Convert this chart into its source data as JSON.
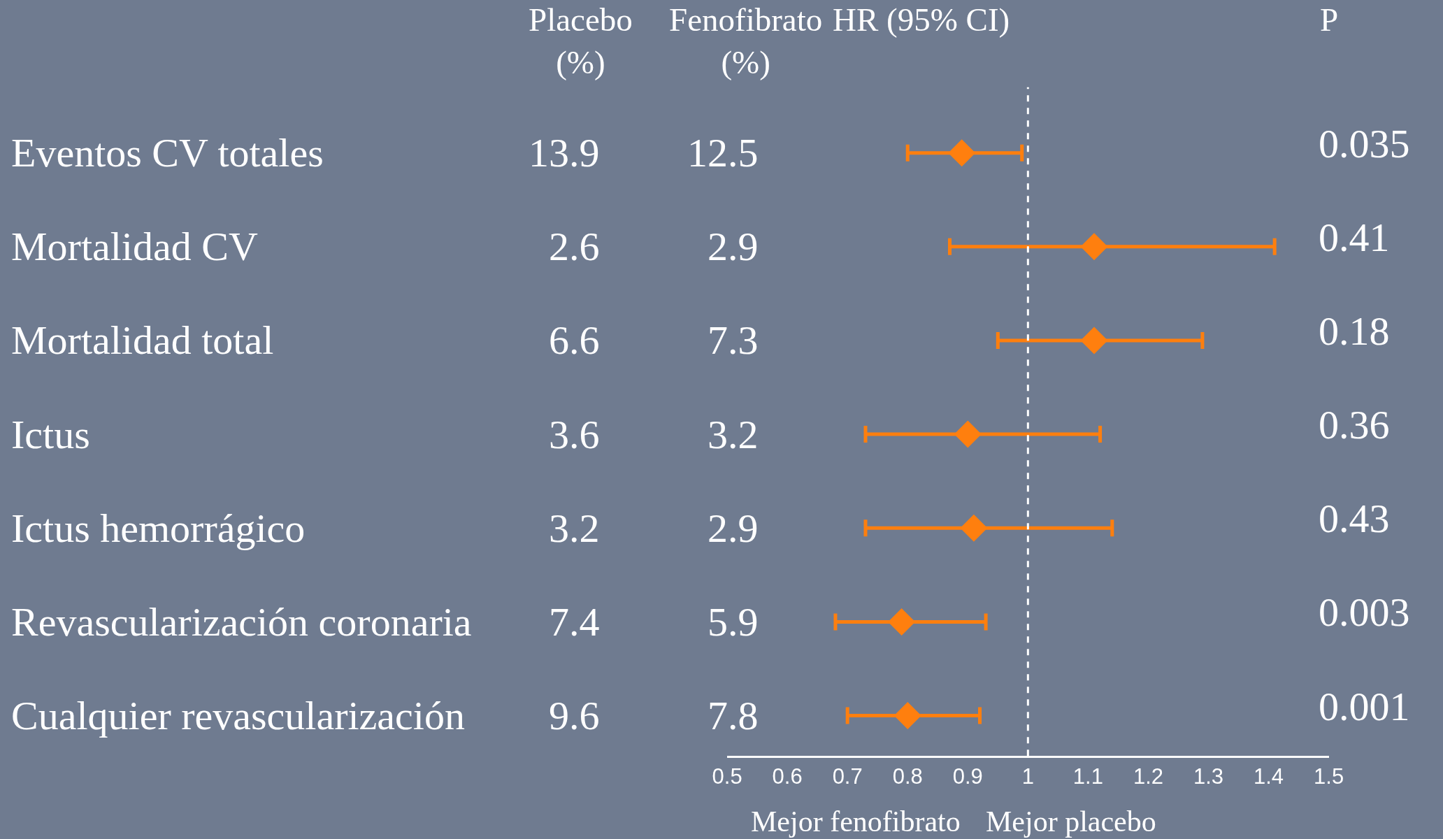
{
  "chart_data": {
    "type": "scatter",
    "orientation": "horizontal",
    "categories": [
      "Eventos CV totales",
      "Mortalidad CV",
      "Mortalidad total",
      "Ictus",
      "Ictus hemorrágico",
      "Revascularización coronaria",
      "Cualquier revascularización"
    ],
    "series": [
      {
        "color": "#ff7f0e",
        "values": [
          0.89,
          1.11,
          1.11,
          0.9,
          0.91,
          0.79,
          0.8
        ],
        "errors": [
          [
            0.8,
            0.99
          ],
          [
            0.87,
            1.41
          ],
          [
            0.95,
            1.29
          ],
          [
            0.73,
            1.12
          ],
          [
            0.73,
            1.14
          ],
          [
            0.68,
            0.93
          ],
          [
            0.7,
            0.92
          ]
        ]
      }
    ],
    "xlim": [
      0.5,
      1.5
    ],
    "xticks": [
      0.5,
      0.6,
      0.7,
      0.8,
      0.9,
      1,
      1.1,
      1.2,
      1.3,
      1.4,
      1.5
    ],
    "ref_lines": [
      {
        "axis": "x",
        "value": 1,
        "color": "#ffffff",
        "line_style": "dashed"
      }
    ],
    "grid": false,
    "marker": "diamond",
    "annotations": [
      "Placebo\n(%)",
      "Fenofibrato\n(%)",
      "HR (95% CI)",
      "P",
      "13.9",
      "12.5",
      "0.035",
      "2.6",
      "2.9",
      "0.41",
      "6.6",
      "7.3",
      "0.18",
      "3.6",
      "3.2",
      "0.36",
      "3.2",
      "2.9",
      "0.43",
      "7.4",
      "5.9",
      "0.003",
      "9.6",
      "7.8",
      "0.001",
      "Mejor fenofibrato",
      "Mejor placebo"
    ]
  }
}
